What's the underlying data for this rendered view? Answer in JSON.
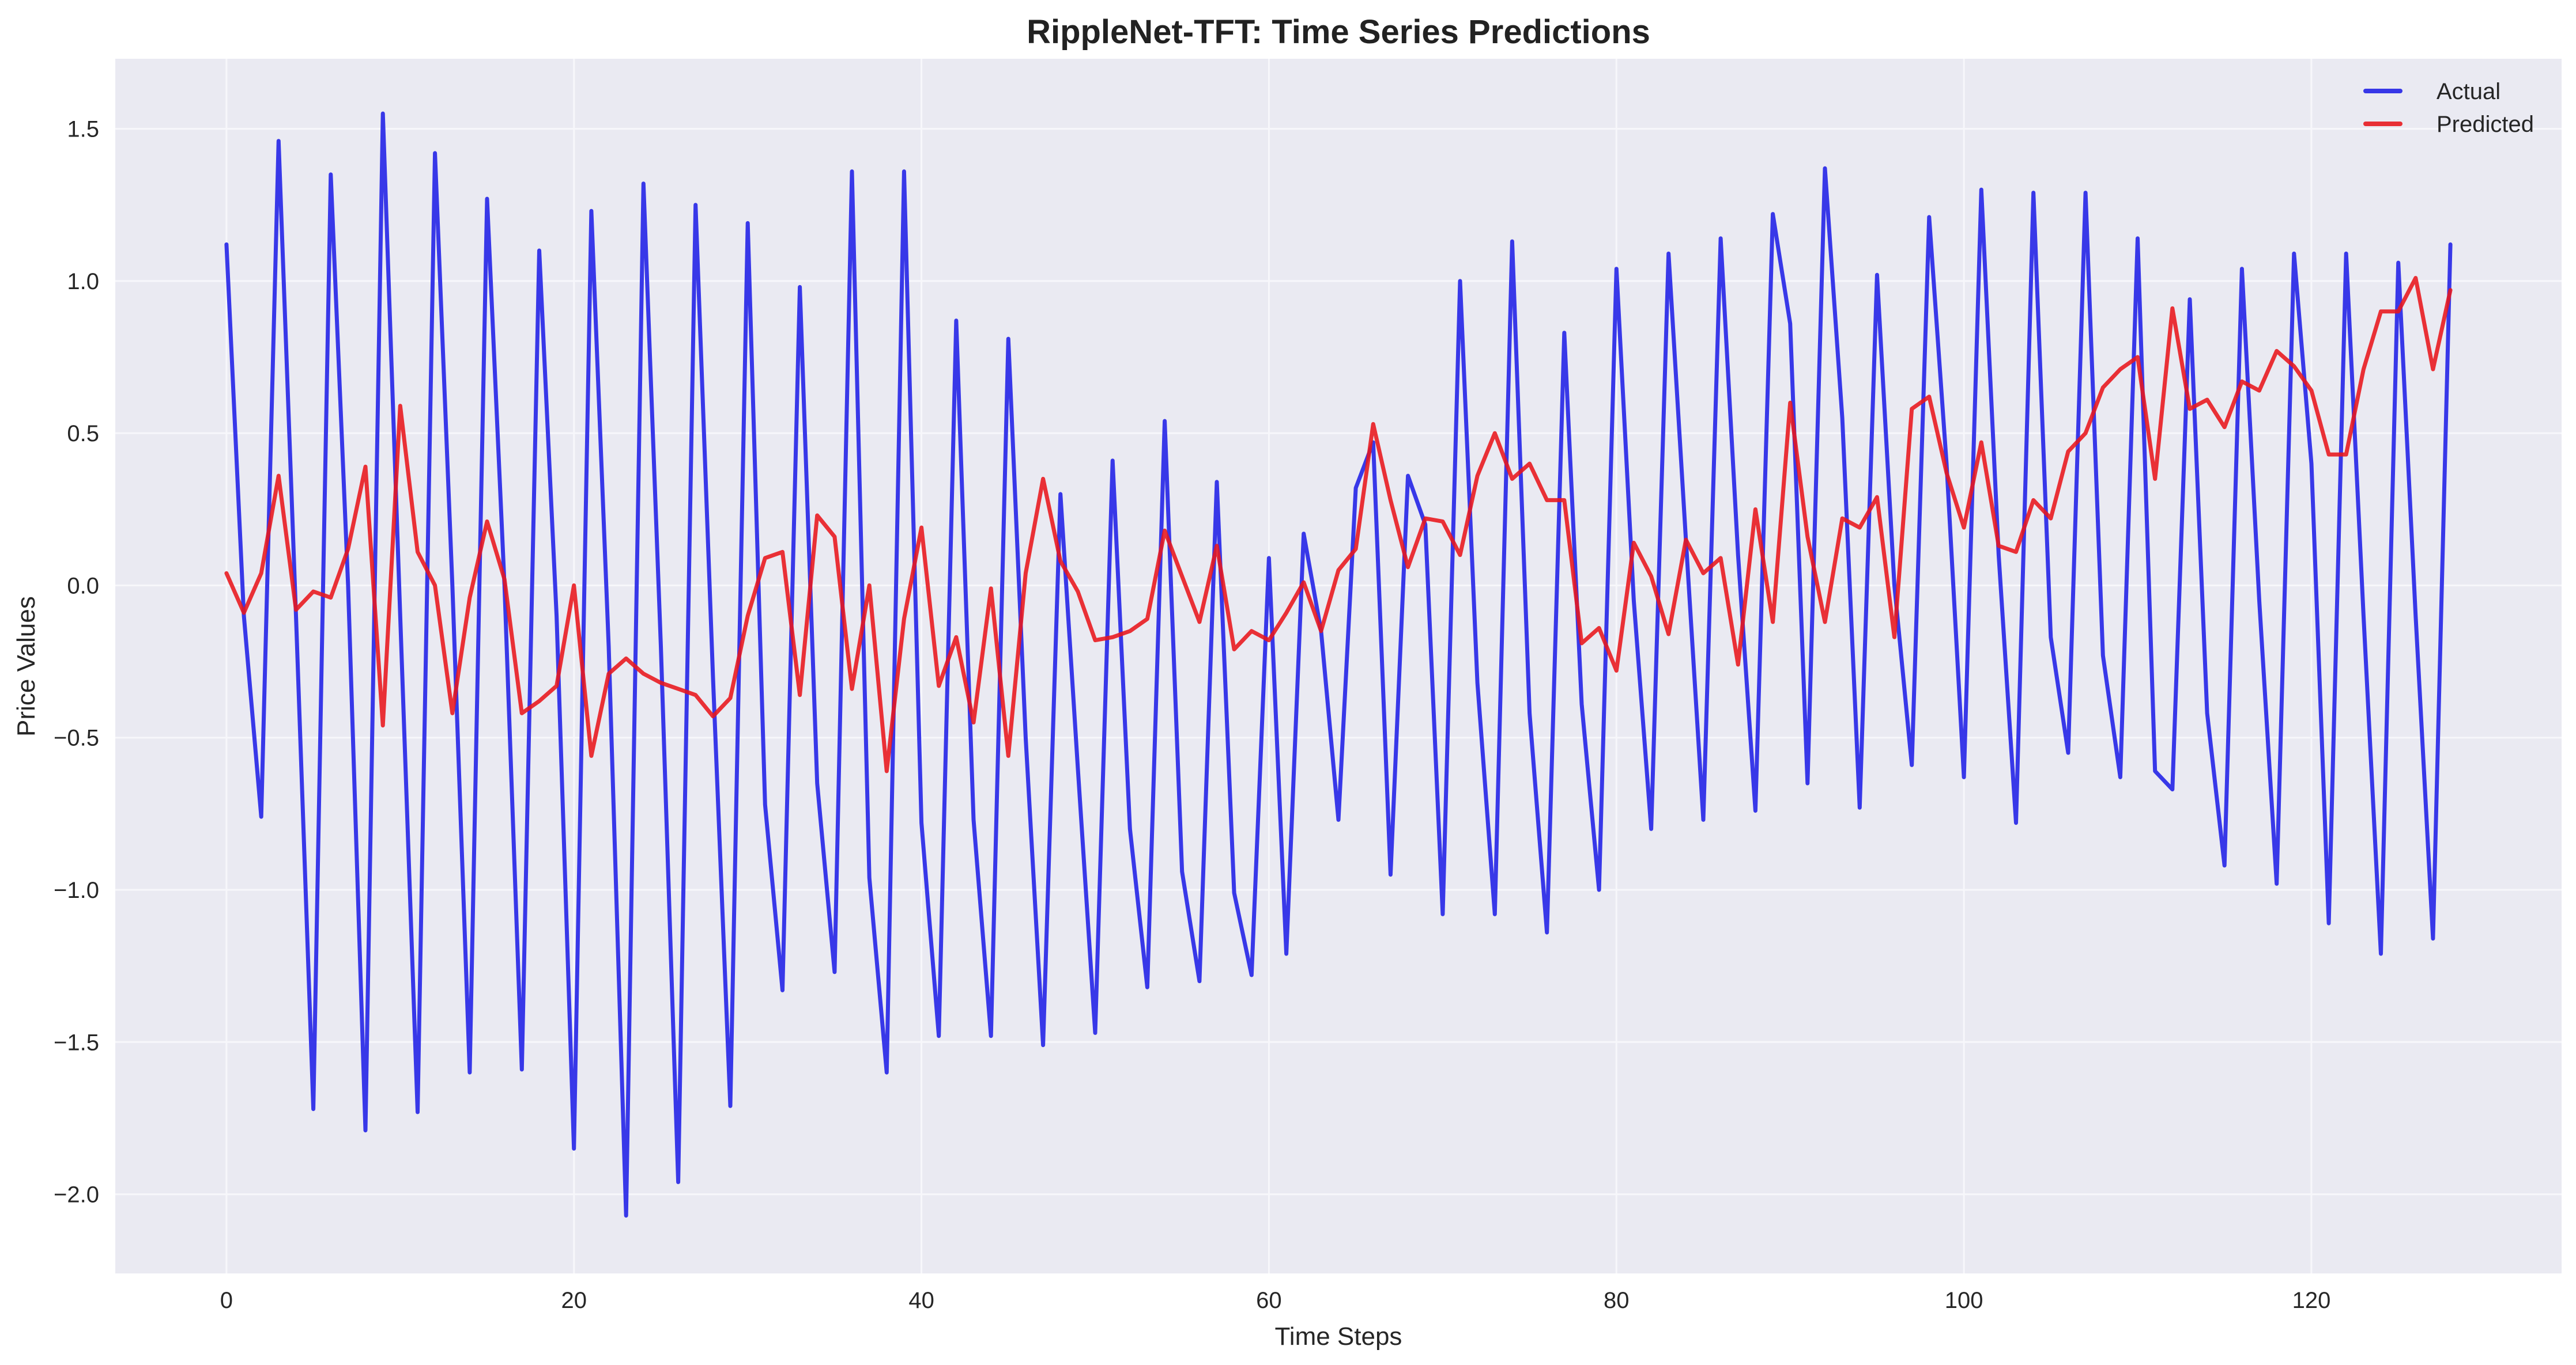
{
  "chart_data": {
    "type": "line",
    "title": "RippleNet-TFT: Time Series Predictions",
    "xlabel": "Time Steps",
    "ylabel": "Price Values",
    "xlim": [
      -6.4,
      134.4
    ],
    "ylim": [
      -2.26,
      1.73
    ],
    "xticks": [
      0,
      20,
      40,
      60,
      80,
      100,
      120
    ],
    "yticks": [
      -2.0,
      -1.5,
      -1.0,
      -0.5,
      0.0,
      0.5,
      1.0,
      1.5
    ],
    "ytick_labels": [
      "−2.0",
      "−1.5",
      "−1.0",
      "−0.5",
      "0.0",
      "0.5",
      "1.0",
      "1.5"
    ],
    "xtick_labels": [
      "0",
      "20",
      "40",
      "60",
      "80",
      "100",
      "120"
    ],
    "grid": true,
    "legend_position": "top-right",
    "background_color": "#eaeaf2",
    "grid_color": "#f7f7fb",
    "series": [
      {
        "name": "Actual",
        "color": "#1f1fe6",
        "values": [
          1.12,
          -0.1,
          -0.76,
          1.46,
          -0.1,
          -1.72,
          1.35,
          0.0,
          -1.79,
          1.55,
          -0.1,
          -1.73,
          1.42,
          0.0,
          -1.6,
          1.27,
          0.0,
          -1.59,
          1.1,
          -0.1,
          -1.85,
          1.23,
          -0.2,
          -2.07,
          1.32,
          -0.2,
          -1.96,
          1.25,
          -0.3,
          -1.71,
          1.19,
          -0.72,
          -1.33,
          0.98,
          -0.65,
          -1.27,
          1.36,
          -0.96,
          -1.6,
          1.36,
          -0.78,
          -1.48,
          0.87,
          -0.77,
          -1.48,
          0.81,
          -0.5,
          -1.51,
          0.3,
          -0.6,
          -1.47,
          0.41,
          -0.8,
          -1.32,
          0.54,
          -0.94,
          -1.3,
          0.34,
          -1.01,
          -1.28,
          0.09,
          -1.21,
          0.17,
          -0.15,
          -0.77,
          0.32,
          0.47,
          -0.95,
          0.36,
          0.2,
          -1.08,
          1.0,
          -0.32,
          -1.08,
          1.13,
          -0.42,
          -1.14,
          0.83,
          -0.39,
          -1.0,
          1.04,
          -0.05,
          -0.8,
          1.09,
          0.15,
          -0.77,
          1.14,
          0.1,
          -0.74,
          1.22,
          0.86,
          -0.65,
          1.37,
          0.55,
          -0.73,
          1.02,
          0.0,
          -0.59,
          1.21,
          0.4,
          -0.63,
          1.3,
          0.1,
          -0.78,
          1.29,
          -0.17,
          -0.55,
          1.29,
          -0.23,
          -0.63,
          1.14,
          -0.61,
          -0.67,
          0.94,
          -0.42,
          -0.92,
          1.04,
          -0.05,
          -0.98,
          1.09,
          0.4,
          -1.11,
          1.09,
          -0.1,
          -1.21,
          1.06,
          -0.1,
          -1.16,
          1.12
        ]
      },
      {
        "name": "Predicted",
        "color": "#e8161b",
        "values": [
          0.04,
          -0.09,
          0.04,
          0.36,
          -0.08,
          -0.02,
          -0.04,
          0.12,
          0.39,
          -0.46,
          0.59,
          0.11,
          0.0,
          -0.42,
          -0.04,
          0.21,
          0.02,
          -0.42,
          -0.38,
          -0.33,
          0.0,
          -0.56,
          -0.29,
          -0.24,
          -0.29,
          -0.32,
          -0.34,
          -0.36,
          -0.43,
          -0.37,
          -0.1,
          0.09,
          0.11,
          -0.36,
          0.23,
          0.16,
          -0.34,
          0.0,
          -0.61,
          -0.11,
          0.19,
          -0.33,
          -0.17,
          -0.45,
          -0.01,
          -0.56,
          0.04,
          0.35,
          0.08,
          -0.02,
          -0.18,
          -0.17,
          -0.15,
          -0.11,
          0.18,
          0.03,
          -0.12,
          0.13,
          -0.21,
          -0.15,
          -0.18,
          -0.09,
          0.01,
          -0.15,
          0.05,
          0.12,
          0.53,
          0.28,
          0.06,
          0.22,
          0.21,
          0.1,
          0.36,
          0.5,
          0.35,
          0.4,
          0.28,
          0.28,
          -0.19,
          -0.14,
          -0.28,
          0.14,
          0.03,
          -0.16,
          0.15,
          0.04,
          0.09,
          -0.26,
          0.25,
          -0.12,
          0.6,
          0.16,
          -0.12,
          0.22,
          0.19,
          0.29,
          -0.17,
          0.58,
          0.62,
          0.37,
          0.19,
          0.47,
          0.13,
          0.11,
          0.28,
          0.22,
          0.44,
          0.5,
          0.65,
          0.71,
          0.75,
          0.35,
          0.91,
          0.58,
          0.61,
          0.52,
          0.67,
          0.64,
          0.77,
          0.72,
          0.64,
          0.43,
          0.43,
          0.71,
          0.9,
          0.9,
          1.01,
          0.71,
          0.97
        ]
      }
    ]
  }
}
